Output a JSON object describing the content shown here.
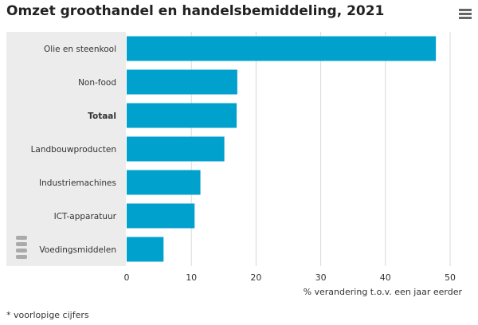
{
  "title": "Omzet groothandel en handelsbemiddeling, 2021",
  "footnote": "* voorlopige cijfers",
  "colors": {
    "bar": "#00a1cd",
    "label_panel": "#ececec",
    "grid": "#d9d9d9"
  },
  "icons": {
    "menu": "hamburger-menu-icon",
    "logo": "cbs-logo-icon"
  },
  "chart_data": {
    "type": "bar",
    "orientation": "horizontal",
    "categories": [
      "Olie en steenkool",
      "Non-food",
      "Totaal",
      "Landbouwproducten",
      "Industriemachines",
      "ICT-apparatuur",
      "Voedingsmiddelen"
    ],
    "bold_categories": [
      "Totaal"
    ],
    "values": [
      47.8,
      17.1,
      17.0,
      15.1,
      11.4,
      10.5,
      5.7
    ],
    "xlim": [
      0,
      50
    ],
    "xticks": [
      0,
      10,
      20,
      30,
      40,
      50
    ],
    "xlabel": "% verandering t.o.v. een jaar eerder",
    "title": "Omzet groothandel en handelsbemiddeling, 2021",
    "grid": true
  }
}
